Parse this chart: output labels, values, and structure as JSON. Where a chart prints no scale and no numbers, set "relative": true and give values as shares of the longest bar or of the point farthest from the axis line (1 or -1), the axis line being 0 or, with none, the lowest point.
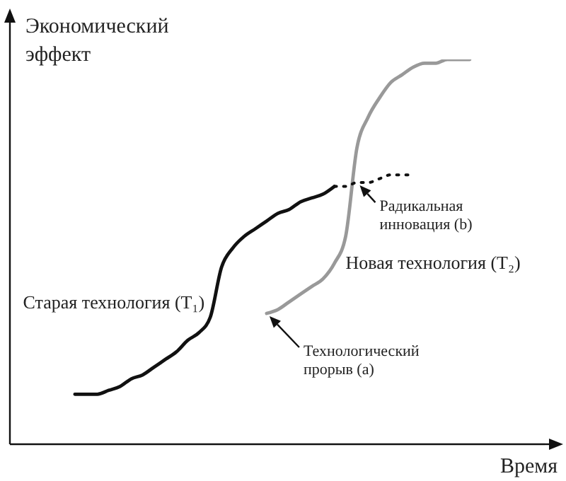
{
  "chart_data": {
    "type": "line",
    "relative": true,
    "ylabel": "Экономический эффект",
    "xlabel": "Время",
    "marker": "none",
    "categories": [
      null,
      null,
      null,
      null,
      null,
      null,
      null,
      null,
      null,
      null,
      null,
      null,
      null,
      null,
      null,
      null,
      null,
      null,
      null,
      null,
      null,
      null,
      null,
      null,
      null,
      null,
      null,
      null,
      null,
      null,
      null,
      null,
      null,
      null,
      null,
      null
    ],
    "series": [
      {
        "name": "Старая технология (T₁)",
        "color": "#111111",
        "line_style": "solid",
        "values": [
          0.13,
          0.13,
          0.13,
          0.14,
          0.15,
          0.17,
          0.18,
          0.2,
          0.22,
          0.24,
          0.27,
          0.29,
          0.33,
          0.46,
          0.51,
          0.54,
          0.56,
          0.58,
          0.6,
          0.61,
          0.63,
          0.64,
          0.65,
          0.67,
          null,
          null,
          null,
          null,
          null,
          null,
          null,
          null,
          null,
          null,
          null,
          null
        ]
      },
      {
        "name": "Новая технология (T₂)",
        "color": "#999999",
        "line_style": "solid",
        "values": [
          null,
          null,
          null,
          null,
          null,
          null,
          null,
          null,
          null,
          null,
          null,
          null,
          null,
          null,
          null,
          null,
          null,
          0.34,
          0.35,
          0.37,
          0.39,
          0.41,
          0.43,
          0.47,
          0.54,
          0.77,
          0.85,
          0.9,
          0.94,
          0.96,
          0.98,
          0.99,
          0.99,
          1,
          1,
          1
        ]
      },
      {
        "color": "#111111",
        "line_style": "dotted",
        "values": [
          null,
          null,
          null,
          null,
          null,
          null,
          null,
          null,
          null,
          null,
          null,
          null,
          null,
          null,
          null,
          null,
          null,
          null,
          null,
          null,
          null,
          null,
          null,
          0.67,
          0.67,
          0.68,
          0.68,
          0.69,
          0.7,
          0.7,
          0.7,
          null,
          null,
          null,
          null,
          null
        ]
      }
    ],
    "annotations": [
      "Радикальная инновация (b)",
      "Технологический прорыв (a)"
    ]
  }
}
